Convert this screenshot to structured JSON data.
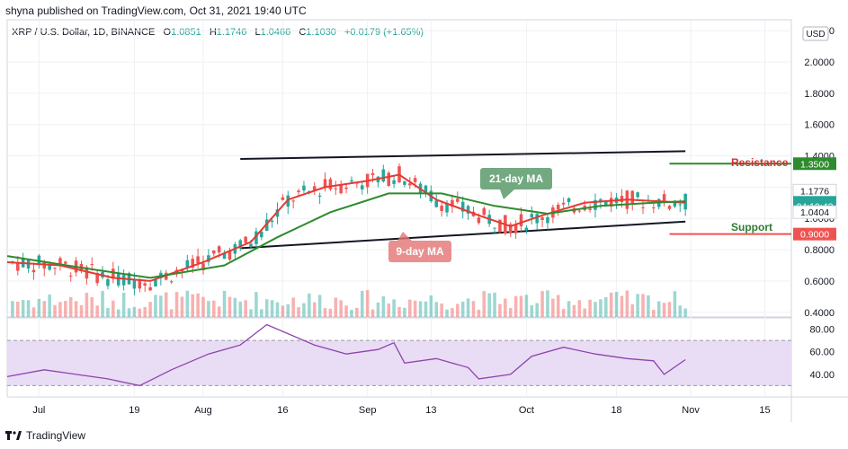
{
  "header": {
    "publisher": "shyna published on TradingView.com, Oct 31, 2021 19:40 UTC"
  },
  "legend": {
    "symbol": "XRP / U.S. Dollar, 1D, BINANCE",
    "o_label": "O",
    "o_value": "1.0851",
    "h_label": "H",
    "h_value": "1.1746",
    "l_label": "L",
    "l_value": "1.0466",
    "c_label": "C",
    "c_value": "1.1030",
    "change": "+0.0179 (+1.65%)"
  },
  "footer": {
    "brand": "TradingView",
    "logo_icon": "tradingview-logo-icon"
  },
  "colors": {
    "up": "#26a69a",
    "down": "#ef5350",
    "ma_fast": "#e53935",
    "ma_slow": "#2e8b2e",
    "rsi": "#8e44ad",
    "rsi_band": "#e9dcf5",
    "channel": "#131722"
  },
  "chart_data": {
    "type": "line",
    "title": "",
    "currency_button": "USD",
    "y_ticks": [
      "0.4000",
      "0.6000",
      "0.8000",
      "1.0000",
      "1.2000",
      "1.4000",
      "1.6000",
      "1.8000",
      "2.0000",
      "2.2000"
    ],
    "y_tick_values": [
      0.4,
      0.6,
      0.8,
      1.0,
      1.2,
      1.4,
      1.6,
      1.8,
      2.0,
      2.2
    ],
    "ylim": [
      0.37,
      2.27
    ],
    "x_ticks": [
      "Jul",
      "19",
      "Aug",
      "16",
      "Sep",
      "13",
      "Oct",
      "18",
      "Nov",
      "15"
    ],
    "x_tick_dates": [
      "2021-07-01",
      "2021-07-19",
      "2021-08-01",
      "2021-08-16",
      "2021-09-01",
      "2021-09-13",
      "2021-10-01",
      "2021-10-18",
      "2021-11-01",
      "2021-11-15"
    ],
    "xlim": [
      "2021-06-25",
      "2021-11-20"
    ],
    "price_labels": [
      {
        "text": "1.3500",
        "value": 1.35,
        "color": "#2e8b2e"
      },
      {
        "text": "1.1776",
        "value": 1.1776,
        "color": "#ffffff"
      },
      {
        "text": "1.1030",
        "value": 1.103,
        "color": "#26a69a"
      },
      {
        "text": "04:19:43",
        "value": 1.08,
        "color": "#26a69a"
      },
      {
        "text": "1.0404",
        "value": 1.0404,
        "color": "#ffffff"
      },
      {
        "text": "0.9000",
        "value": 0.9,
        "color": "#ef5350"
      }
    ],
    "annotations": {
      "resistance": "Resistance",
      "support": "Support",
      "ma21": "21-day MA",
      "ma9": "9-day MA"
    },
    "resistance_level": 1.35,
    "support_level": 0.9,
    "channel_upper": [
      {
        "x": "2021-08-08",
        "y": 1.38
      },
      {
        "x": "2021-10-31",
        "y": 1.43
      }
    ],
    "channel_lower": [
      {
        "x": "2021-08-08",
        "y": 0.81
      },
      {
        "x": "2021-10-31",
        "y": 0.98
      }
    ],
    "series": [
      {
        "name": "9-day MA",
        "points": [
          {
            "x": "2021-06-25",
            "y": 0.72
          },
          {
            "x": "2021-07-05",
            "y": 0.7
          },
          {
            "x": "2021-07-15",
            "y": 0.62
          },
          {
            "x": "2021-07-22",
            "y": 0.6
          },
          {
            "x": "2021-08-01",
            "y": 0.72
          },
          {
            "x": "2021-08-10",
            "y": 0.85
          },
          {
            "x": "2021-08-17",
            "y": 1.12
          },
          {
            "x": "2021-08-24",
            "y": 1.2
          },
          {
            "x": "2021-09-01",
            "y": 1.24
          },
          {
            "x": "2021-09-07",
            "y": 1.28
          },
          {
            "x": "2021-09-14",
            "y": 1.12
          },
          {
            "x": "2021-09-22",
            "y": 1.02
          },
          {
            "x": "2021-09-28",
            "y": 0.95
          },
          {
            "x": "2021-10-04",
            "y": 1.02
          },
          {
            "x": "2021-10-12",
            "y": 1.1
          },
          {
            "x": "2021-10-20",
            "y": 1.12
          },
          {
            "x": "2021-10-31",
            "y": 1.1
          }
        ]
      },
      {
        "name": "21-day MA",
        "points": [
          {
            "x": "2021-06-25",
            "y": 0.76
          },
          {
            "x": "2021-07-10",
            "y": 0.68
          },
          {
            "x": "2021-07-22",
            "y": 0.62
          },
          {
            "x": "2021-08-05",
            "y": 0.7
          },
          {
            "x": "2021-08-15",
            "y": 0.88
          },
          {
            "x": "2021-08-25",
            "y": 1.04
          },
          {
            "x": "2021-09-05",
            "y": 1.16
          },
          {
            "x": "2021-09-15",
            "y": 1.16
          },
          {
            "x": "2021-09-25",
            "y": 1.08
          },
          {
            "x": "2021-10-05",
            "y": 1.03
          },
          {
            "x": "2021-10-15",
            "y": 1.08
          },
          {
            "x": "2021-10-25",
            "y": 1.1
          },
          {
            "x": "2021-10-31",
            "y": 1.11
          }
        ]
      }
    ],
    "rsi": {
      "y_ticks": [
        "40.00",
        "60.00",
        "80.00"
      ],
      "y_tick_values": [
        40,
        60,
        80
      ],
      "ylim": [
        20,
        90
      ],
      "overbought": 70,
      "oversold": 30,
      "points": [
        {
          "x": "2021-06-25",
          "y": 38
        },
        {
          "x": "2021-07-02",
          "y": 44
        },
        {
          "x": "2021-07-08",
          "y": 40
        },
        {
          "x": "2021-07-14",
          "y": 36
        },
        {
          "x": "2021-07-20",
          "y": 30
        },
        {
          "x": "2021-07-26",
          "y": 44
        },
        {
          "x": "2021-08-02",
          "y": 58
        },
        {
          "x": "2021-08-08",
          "y": 66
        },
        {
          "x": "2021-08-13",
          "y": 84
        },
        {
          "x": "2021-08-17",
          "y": 76
        },
        {
          "x": "2021-08-22",
          "y": 66
        },
        {
          "x": "2021-08-28",
          "y": 58
        },
        {
          "x": "2021-09-03",
          "y": 62
        },
        {
          "x": "2021-09-06",
          "y": 68
        },
        {
          "x": "2021-09-08",
          "y": 50
        },
        {
          "x": "2021-09-14",
          "y": 54
        },
        {
          "x": "2021-09-20",
          "y": 46
        },
        {
          "x": "2021-09-22",
          "y": 36
        },
        {
          "x": "2021-09-28",
          "y": 40
        },
        {
          "x": "2021-10-02",
          "y": 56
        },
        {
          "x": "2021-10-08",
          "y": 64
        },
        {
          "x": "2021-10-14",
          "y": 58
        },
        {
          "x": "2021-10-20",
          "y": 54
        },
        {
          "x": "2021-10-25",
          "y": 52
        },
        {
          "x": "2021-10-27",
          "y": 40
        },
        {
          "x": "2021-10-31",
          "y": 53
        }
      ]
    }
  }
}
